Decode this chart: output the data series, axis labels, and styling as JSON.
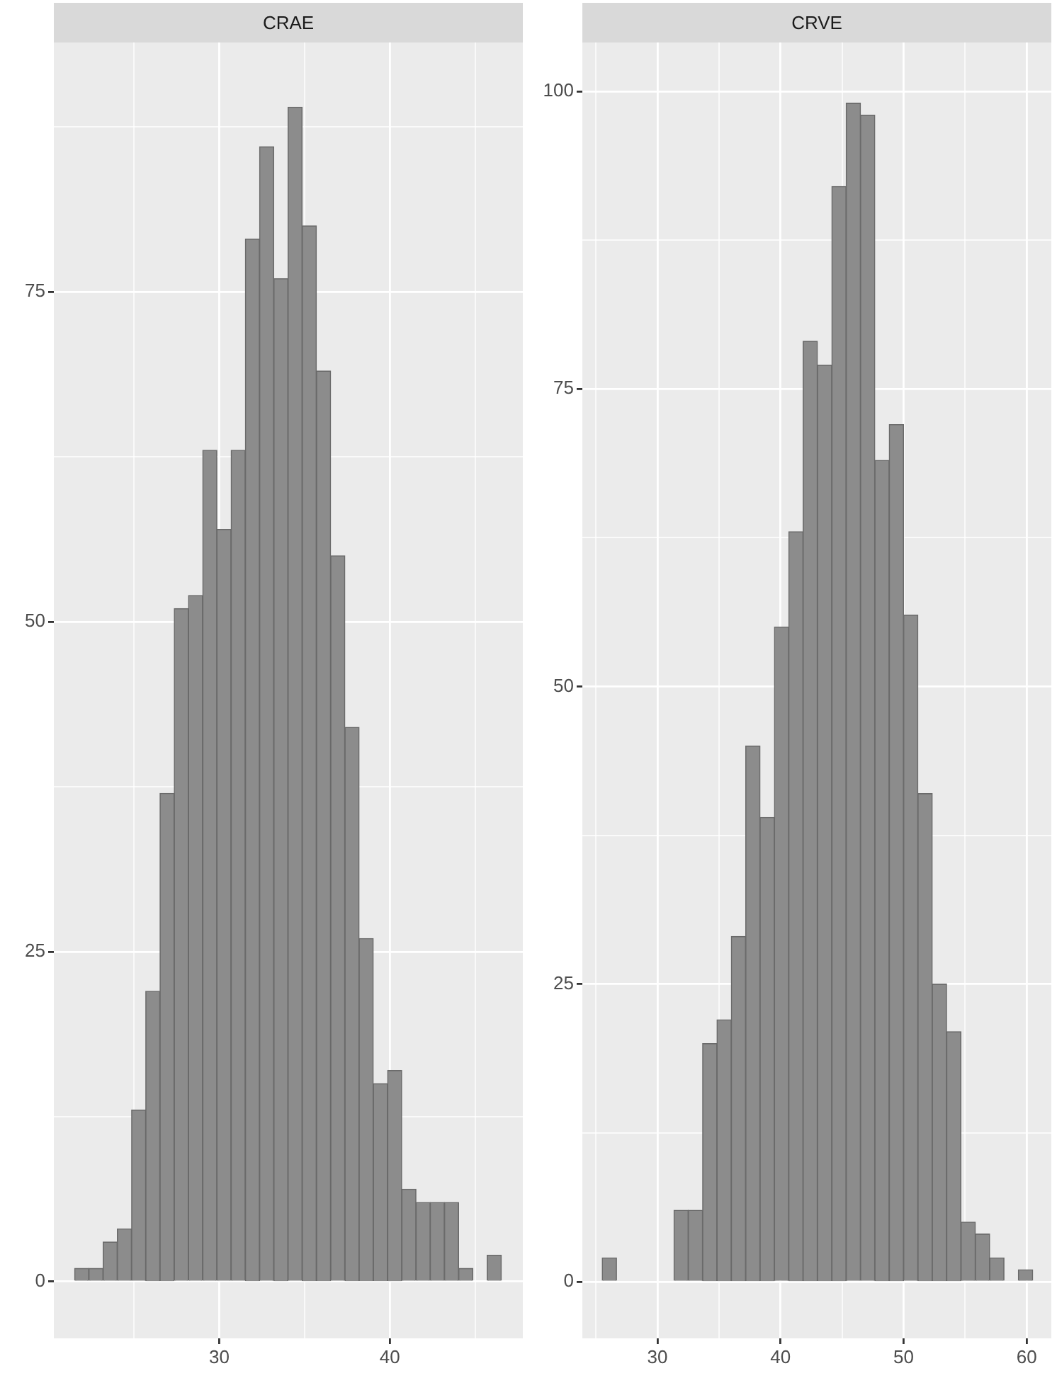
{
  "chart_data": [
    {
      "type": "histogram",
      "title": "CRAE",
      "color": "#8c8c8c",
      "grid": true,
      "bins": [
        21.52,
        22.35,
        23.19,
        24.02,
        24.86,
        25.69,
        26.52,
        27.36,
        28.19,
        29.03,
        29.86,
        30.69,
        31.53,
        32.36,
        33.2,
        34.03,
        34.86,
        35.7,
        36.53,
        37.37,
        38.2,
        39.03,
        39.87,
        40.7,
        41.54,
        42.37,
        43.2,
        44.04,
        44.87,
        45.71,
        46.54
      ],
      "values": [
        1,
        1,
        3,
        4,
        13,
        22,
        37,
        51,
        52,
        63,
        57,
        63,
        79,
        86,
        76,
        89,
        80,
        69,
        55,
        42,
        26,
        15,
        16,
        7,
        6,
        6,
        6,
        1,
        0,
        2
      ],
      "xlim": [
        20.3,
        47.8
      ],
      "ylim": [
        -4.3,
        93.9
      ],
      "xticks": [
        {
          "value": 25,
          "label": null
        },
        30,
        {
          "value": 35,
          "label": null
        },
        40,
        {
          "value": 45,
          "label": null
        }
      ],
      "yticks": [
        0,
        {
          "value": 12.5,
          "label": null
        },
        25,
        {
          "value": 37.5,
          "label": null
        },
        50,
        {
          "value": 62.5,
          "label": null
        },
        75,
        {
          "value": 87.5,
          "label": null
        }
      ]
    },
    {
      "type": "histogram",
      "title": "CRVE",
      "color": "#8c8c8c",
      "grid": true,
      "bins": [
        25.51,
        26.68,
        27.84,
        29.01,
        30.17,
        31.34,
        32.51,
        33.67,
        34.84,
        36.0,
        37.17,
        38.34,
        39.5,
        40.67,
        41.83,
        43.0,
        44.17,
        45.33,
        46.5,
        47.66,
        48.83,
        50.0,
        51.16,
        52.33,
        53.49,
        54.66,
        55.83,
        56.99,
        58.16,
        59.32,
        60.49
      ],
      "values": [
        2,
        0,
        0,
        0,
        0,
        6,
        6,
        20,
        22,
        29,
        45,
        39,
        55,
        63,
        79,
        77,
        92,
        99,
        98,
        69,
        72,
        56,
        41,
        25,
        21,
        5,
        4,
        2,
        0,
        1
      ],
      "xlim": [
        23.9,
        62.0
      ],
      "ylim": [
        -4.76,
        104.1
      ],
      "xticks": [
        {
          "value": 25,
          "label": null
        },
        30,
        {
          "value": 35,
          "label": null
        },
        40,
        {
          "value": 45,
          "label": null
        },
        50,
        {
          "value": 55,
          "label": null
        },
        60
      ],
      "yticks": [
        0,
        {
          "value": 12.5,
          "label": null
        },
        25,
        {
          "value": 37.5,
          "label": null
        },
        50,
        {
          "value": 62.5,
          "label": null
        },
        75,
        {
          "value": 87.5,
          "label": null
        },
        100
      ]
    }
  ]
}
